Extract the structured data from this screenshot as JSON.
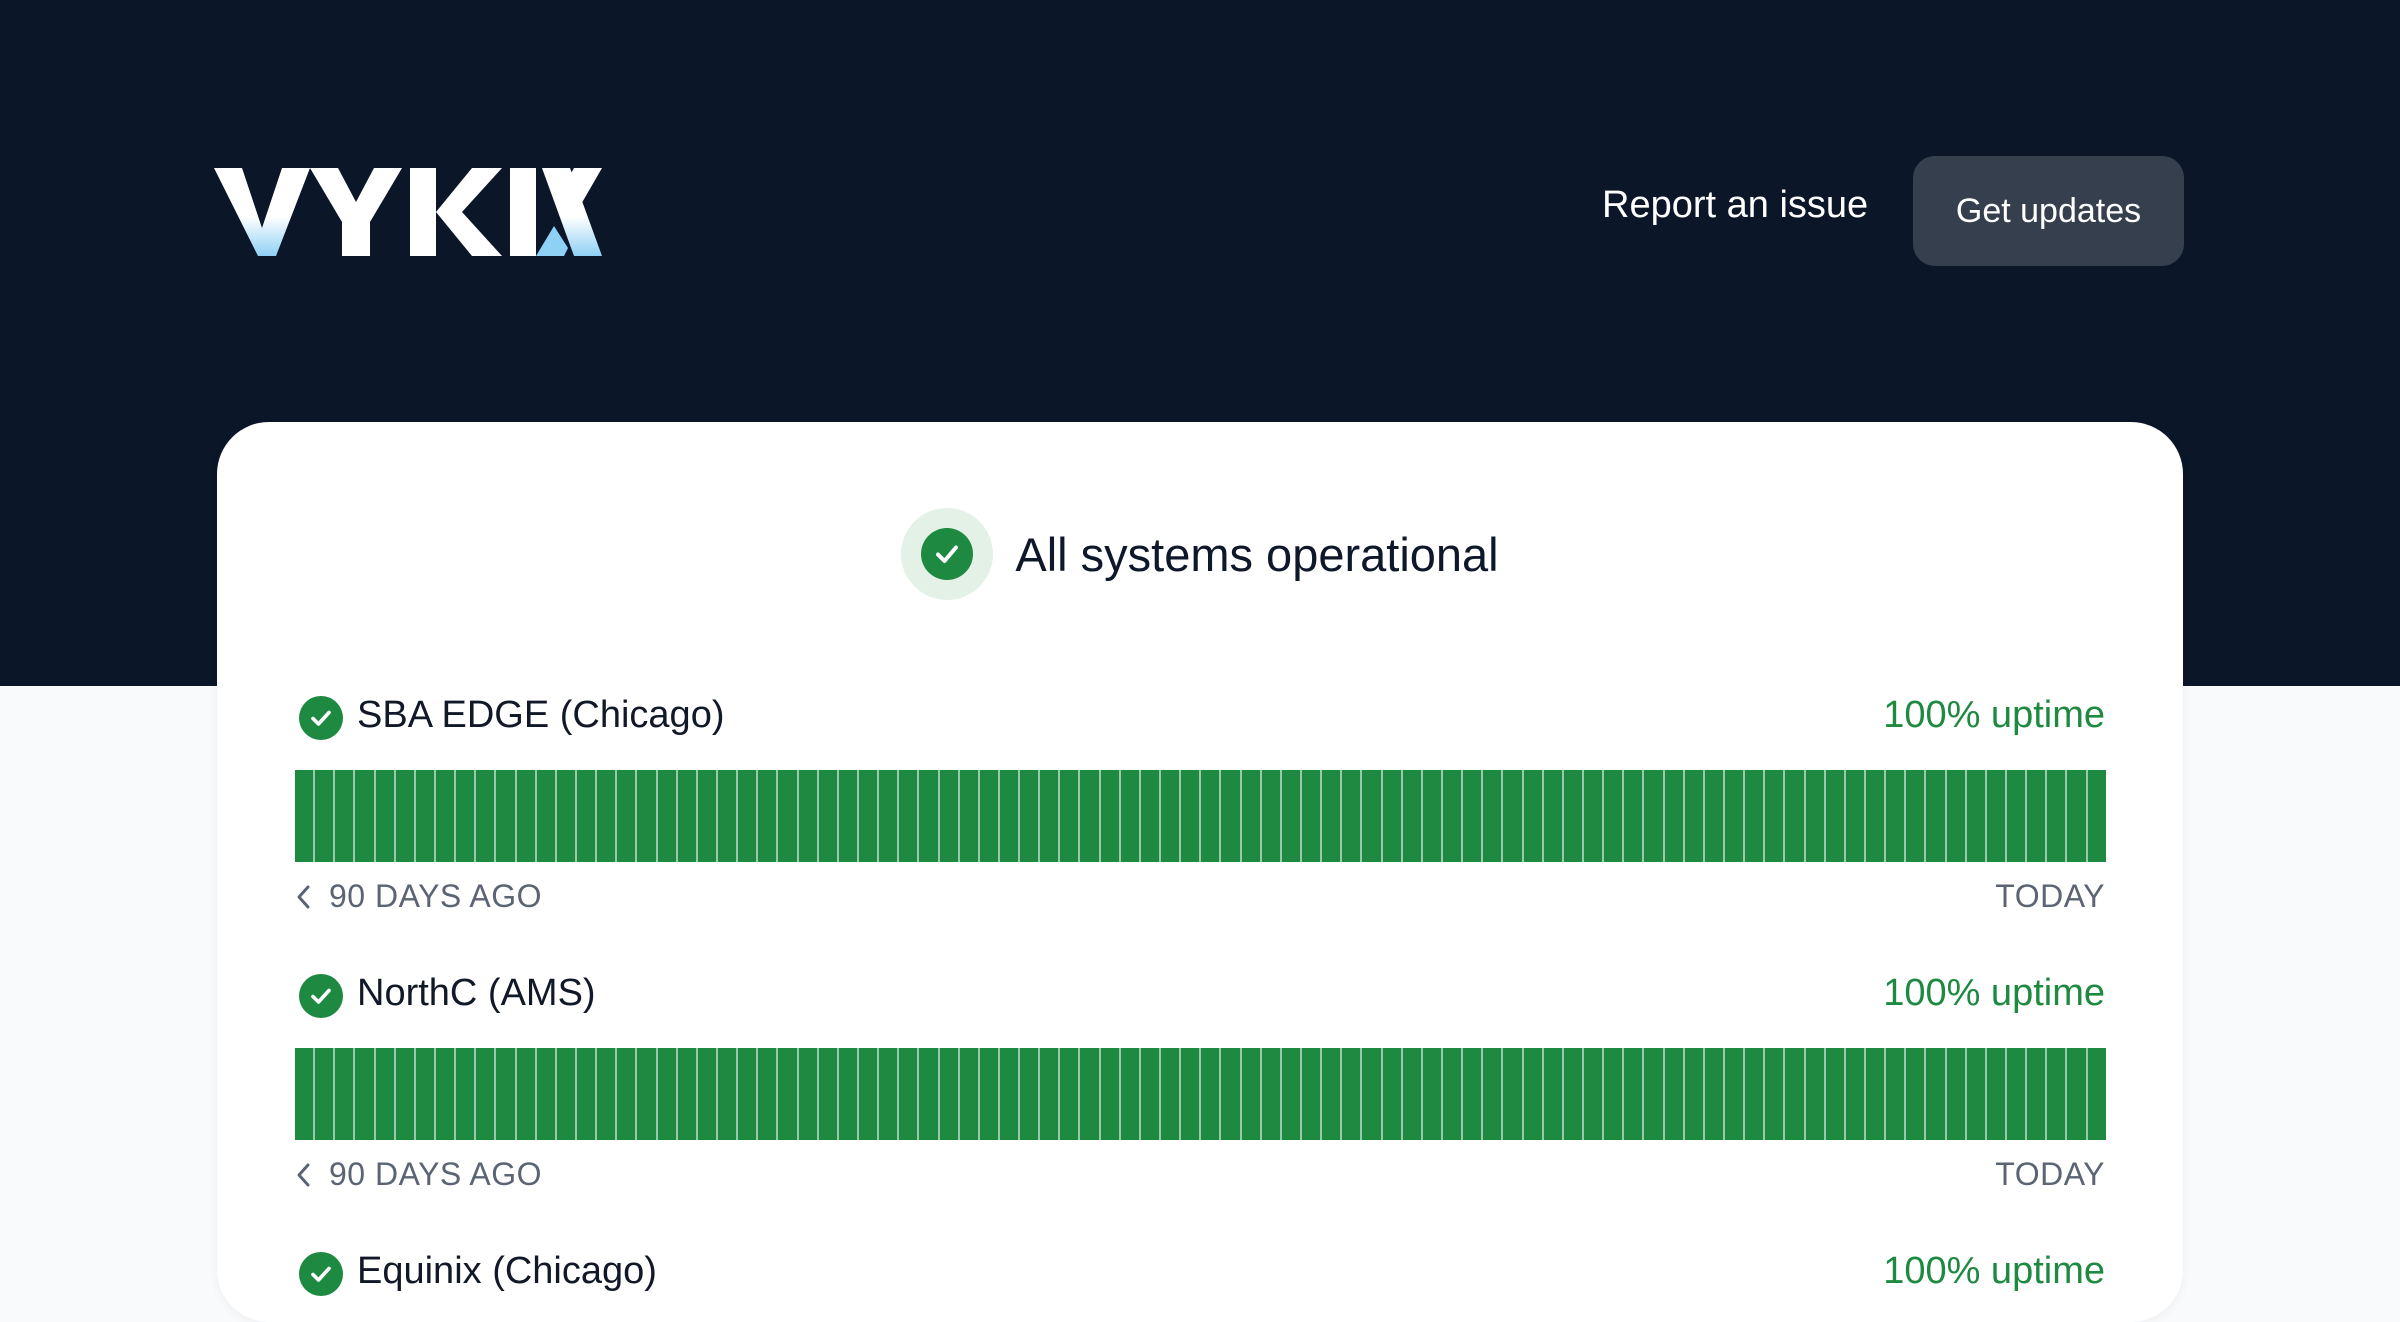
{
  "header": {
    "logo_text": "VYKIX",
    "report_link": "Report an issue",
    "get_updates_button": "Get updates"
  },
  "overall_status": {
    "text": "All systems operational",
    "icon": "check-icon"
  },
  "services": [
    {
      "name": "SBA EDGE (Chicago)",
      "uptime": "100% uptime",
      "status_icon": "check-icon",
      "range_start": "90 DAYS AGO",
      "range_end": "TODAY",
      "days": 90,
      "day_status": "operational"
    },
    {
      "name": "NorthC (AMS)",
      "uptime": "100% uptime",
      "status_icon": "check-icon",
      "range_start": "90 DAYS AGO",
      "range_end": "TODAY",
      "days": 90,
      "day_status": "operational"
    },
    {
      "name": "Equinix (Chicago)",
      "uptime": "100% uptime",
      "status_icon": "check-icon"
    }
  ],
  "colors": {
    "hero_background": "#0b1628",
    "page_background": "#f8fafc",
    "operational_green": "#1e8a41",
    "button_background": "#363f4e",
    "muted_text": "#5b6473"
  }
}
